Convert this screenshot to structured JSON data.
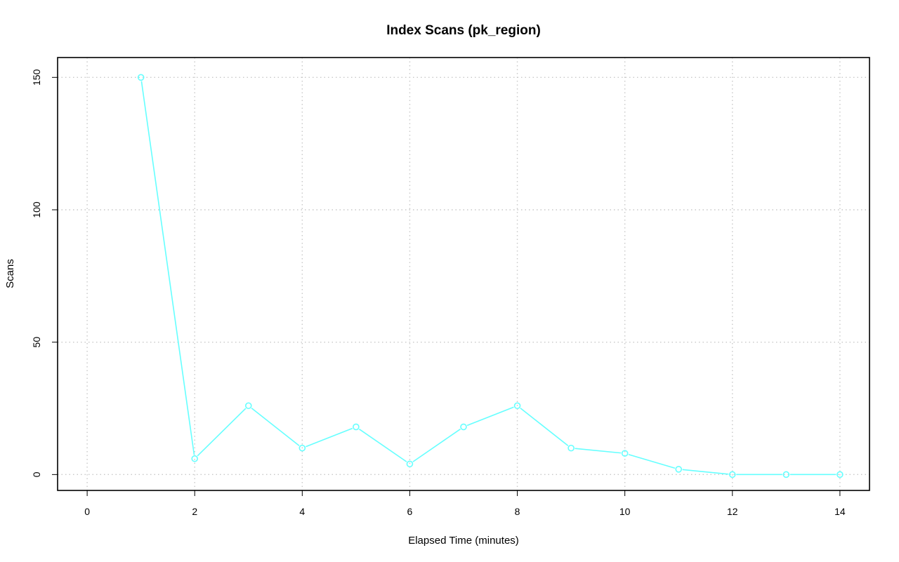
{
  "chart_data": {
    "type": "line",
    "title": "Index Scans (pk_region)",
    "xlabel": "Elapsed Time (minutes)",
    "ylabel": "Scans",
    "xlim": [
      -0.55,
      14.55
    ],
    "ylim": [
      -6,
      157.5
    ],
    "x_ticks": [
      0,
      2,
      4,
      6,
      8,
      10,
      12,
      14
    ],
    "x_tick_labels": [
      "0",
      "2",
      "4",
      "6",
      "8",
      "10",
      "12",
      "14"
    ],
    "y_ticks": [
      0,
      50,
      100,
      150
    ],
    "y_tick_labels": [
      "0",
      "50",
      "100",
      "150"
    ],
    "grid": true,
    "series": [
      {
        "color": "#66ffff",
        "x": [
          1,
          2,
          3,
          4,
          5,
          6,
          7,
          8,
          9,
          10,
          11,
          12,
          13,
          14
        ],
        "values": [
          150,
          6,
          26,
          10,
          18,
          4,
          18,
          26,
          10,
          8,
          2,
          0,
          0,
          0
        ]
      }
    ]
  }
}
